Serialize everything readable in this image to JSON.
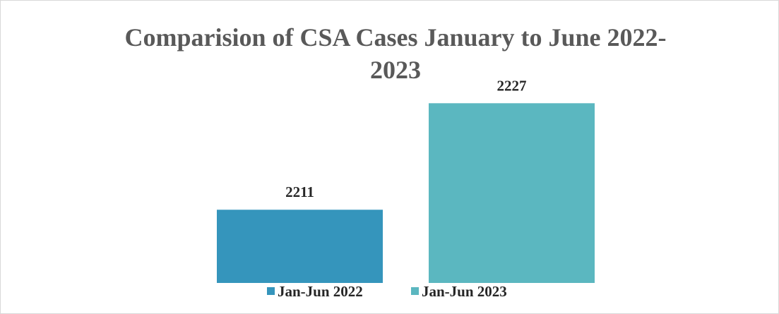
{
  "chart_data": {
    "type": "bar",
    "title": "Comparision of CSA Cases January to June 2022-2023",
    "categories": [
      null
    ],
    "series": [
      {
        "name": "Jan-Jun 2022",
        "color": "#3595bc",
        "values": [
          2211
        ]
      },
      {
        "name": "Jan-Jun 2023",
        "color": "#5bb7c0",
        "values": [
          2227
        ]
      }
    ],
    "ylim": [
      2200,
      2230
    ],
    "legend": "bottom"
  }
}
